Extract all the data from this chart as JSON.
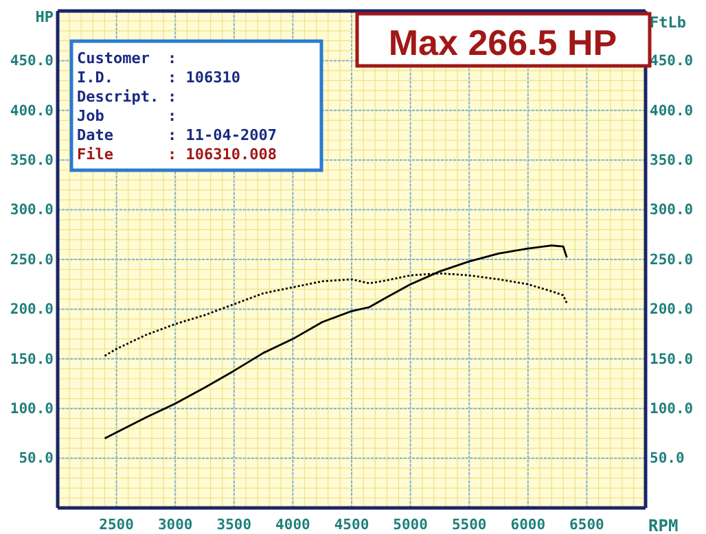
{
  "chart_data": {
    "type": "line",
    "xlabel": "RPM",
    "ylabel": "HP",
    "y2label": "FtLb",
    "xlim": [
      2000,
      7000
    ],
    "xticks": [
      2500,
      3000,
      3500,
      4000,
      4500,
      5000,
      5500,
      {
        "value": 6000,
        "label": "6000"
      },
      6500
    ],
    "ylim": [
      0,
      500
    ],
    "yticks": [
      {
        "value": 50,
        "label": "50.0"
      },
      {
        "value": 100,
        "label": "100.0"
      },
      {
        "value": 150,
        "label": "150.0"
      },
      {
        "value": 200,
        "label": "200.0"
      },
      {
        "value": 250,
        "label": "250.0"
      },
      {
        "value": 300,
        "label": "300.0"
      },
      {
        "value": 350,
        "label": "350.0"
      },
      {
        "value": 400,
        "label": "400.0"
      },
      {
        "value": 450,
        "label": "450.0"
      }
    ],
    "y2lim": [
      0,
      500
    ],
    "y2ticks": [
      {
        "value": 50,
        "label": "50.0"
      },
      {
        "value": 100,
        "label": "100.0"
      },
      {
        "value": 150,
        "label": "150.0"
      },
      {
        "value": 200,
        "label": "200.0"
      },
      {
        "value": 250,
        "label": "250.0"
      },
      {
        "value": 300,
        "label": "300.0"
      },
      {
        "value": 350,
        "label": "350.0"
      },
      {
        "value": 400,
        "label": "400.0"
      },
      {
        "value": 450,
        "label": "450.0"
      }
    ],
    "grid": true,
    "marker": "none",
    "series": [
      {
        "color": "#000000",
        "line_style": "solid",
        "x": [
          2400,
          2500,
          2750,
          3000,
          3250,
          3500,
          3750,
          4000,
          4250,
          4500,
          4650,
          4800,
          5000,
          5250,
          5500,
          5750,
          6000,
          6200,
          6300,
          6330
        ],
        "values": [
          70,
          76,
          91,
          105,
          121,
          138,
          156,
          170,
          187,
          198,
          202,
          212,
          225,
          238,
          248,
          256,
          261,
          264,
          263,
          252
        ]
      },
      {
        "color": "#000000",
        "line_style": "dotted",
        "x": [
          2400,
          2500,
          2750,
          3000,
          3250,
          3500,
          3750,
          4000,
          4250,
          4500,
          4650,
          4800,
          5000,
          5250,
          5500,
          5750,
          6000,
          6200,
          6300,
          6330
        ],
        "values": [
          153,
          160,
          174,
          185,
          194,
          205,
          216,
          222,
          228,
          230,
          226,
          229,
          234,
          236,
          234,
          230,
          225,
          218,
          214,
          206
        ]
      }
    ],
    "annotations": [
      "Max 266.5 HP",
      "Customer :",
      "I.D. : 106310",
      "Descript. :",
      "Job :",
      "Date : 11-04-2007",
      "File : 106310.008"
    ]
  }
}
